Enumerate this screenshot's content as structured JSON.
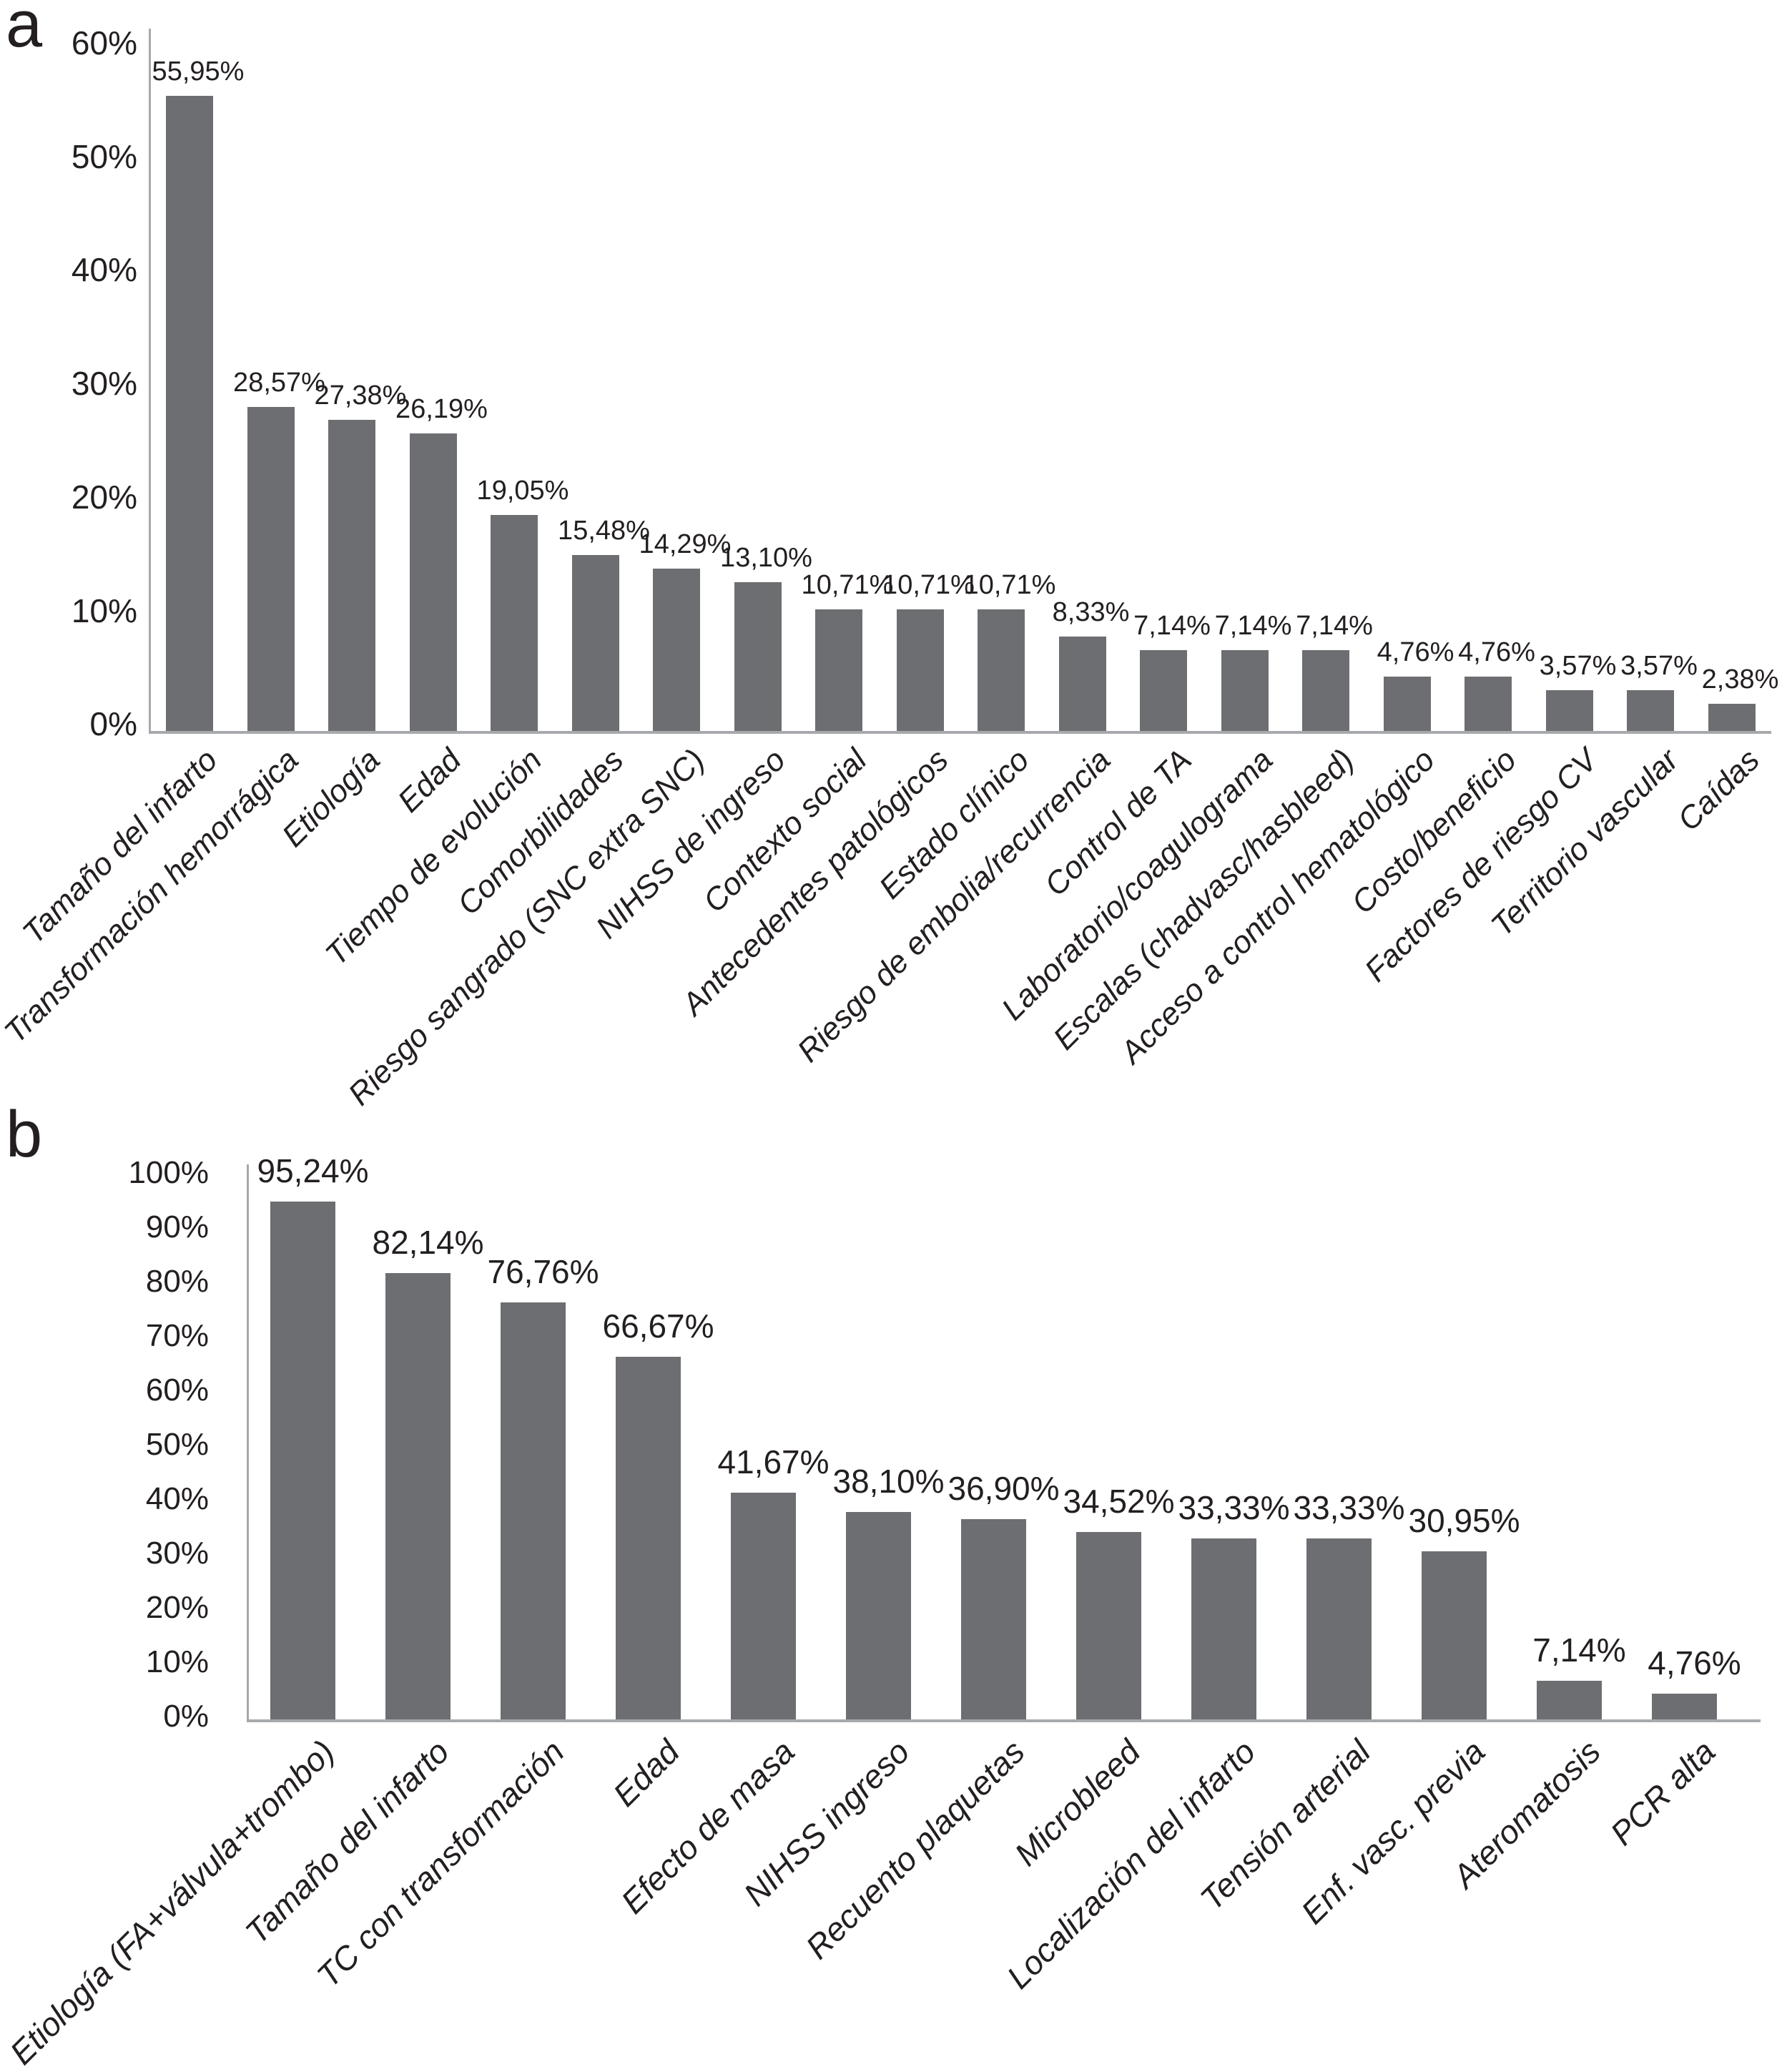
{
  "figure": {
    "panels": [
      {
        "panel_label": "a"
      },
      {
        "panel_label": "b"
      }
    ]
  },
  "colors": {
    "bar": "#6d6e71",
    "axis": "#a7a9ac",
    "text": "#231f20",
    "background": "#ffffff"
  },
  "chart_data": [
    {
      "type": "bar",
      "panel_label": "a",
      "title": "",
      "xlabel": "",
      "ylabel": "",
      "ylim": [
        0,
        60
      ],
      "grid": false,
      "legend": "none",
      "bar_color": "#6d6e71",
      "axis_color": "#a7a9ac",
      "y_ticks": [
        "60%",
        "50%",
        "40%",
        "30%",
        "20%",
        "10%",
        "0%"
      ],
      "categories": [
        "Tamaño del infarto",
        "Transformación hemorrágica",
        "Etiología",
        "Edad",
        "Tiempo de evolución",
        "Comorbilidades",
        "Riesgo sangrado (SNC extra SNC)",
        "NIHSS de ingreso",
        "Contexto social",
        "Antecedentes patológicos",
        "Estado clínico",
        "Riesgo de embolia/recurrencia",
        "Control de TA",
        "Laboratorio/coagulograma",
        "Escalas (chadvasc/hasbleed)",
        "Acceso a control hematológico",
        "Costo/beneficio",
        "Factores de riesgo CV",
        "Territorio vascular",
        "Caídas"
      ],
      "values": [
        55.95,
        28.57,
        27.38,
        26.19,
        19.05,
        15.48,
        14.29,
        13.1,
        10.71,
        10.71,
        10.71,
        8.33,
        7.14,
        7.14,
        7.14,
        4.76,
        4.76,
        3.57,
        3.57,
        2.38
      ],
      "value_labels": [
        "55,95%",
        "28,57%",
        "27,38%",
        "26,19%",
        "19,05%",
        "15,48%",
        "14,29%",
        "13,10%",
        "10,71%",
        "10,71%",
        "10,71%",
        "8,33%",
        "7,14%",
        "7,14%",
        "7,14%",
        "4,76%",
        "4,76%",
        "3,57%",
        "3,57%",
        "2,38%"
      ]
    },
    {
      "type": "bar",
      "panel_label": "b",
      "title": "",
      "xlabel": "",
      "ylabel": "",
      "ylim": [
        0,
        100
      ],
      "grid": false,
      "legend": "none",
      "bar_color": "#6d6e71",
      "axis_color": "#a7a9ac",
      "y_ticks": [
        "100%",
        "90%",
        "80%",
        "70%",
        "60%",
        "50%",
        "40%",
        "30%",
        "20%",
        "10%",
        "0%"
      ],
      "categories": [
        "Etiología (FA+válvula+trombo)",
        "Tamaño del infarto",
        "TC con transformación",
        "Edad",
        "Efecto de masa",
        "NIHSS ingreso",
        "Recuento plaquetas",
        "Microbleed",
        "Localización del infarto",
        "Tensión arterial",
        "Enf. vasc. previa",
        "Ateromatosis",
        "PCR alta"
      ],
      "values": [
        95.24,
        82.14,
        76.76,
        66.67,
        41.67,
        38.1,
        36.9,
        34.52,
        33.33,
        33.33,
        30.95,
        7.14,
        4.76
      ],
      "value_labels": [
        "95,24%",
        "82,14%",
        "76,76%",
        "66,67%",
        "41,67%",
        "38,10%",
        "36,90%",
        "34,52%",
        "33,33%",
        "33,33%",
        "30,95%",
        "7,14%",
        "4,76%"
      ]
    }
  ]
}
